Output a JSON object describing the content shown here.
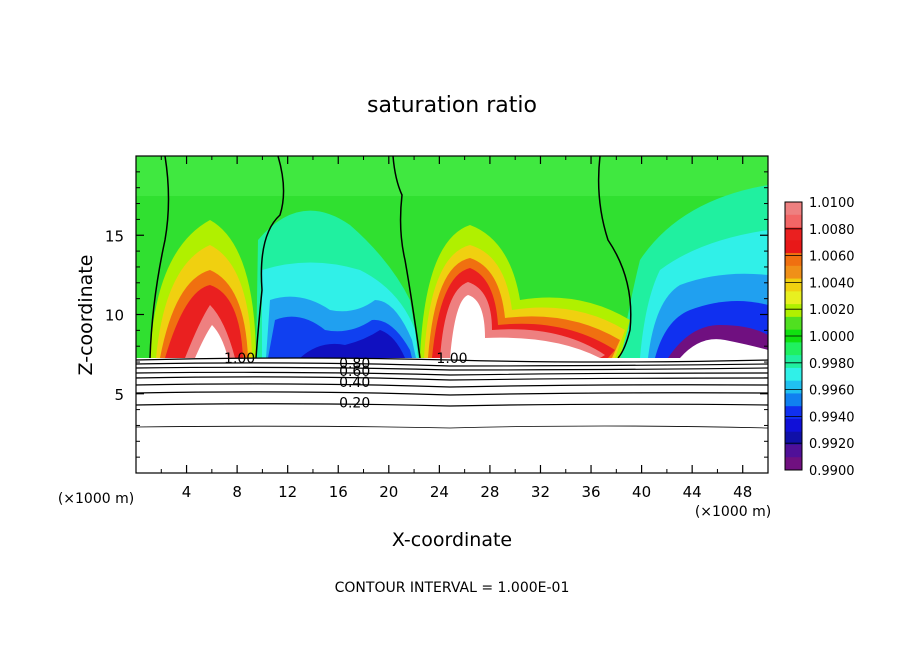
{
  "chart_data": {
    "type": "heatmap",
    "title": "saturation ratio",
    "xlabel": "X-coordinate",
    "ylabel": "Z-coordinate",
    "x_unit": "(×1000 m)",
    "x_unit_right": "(×1000 m)",
    "xlim": [
      0,
      50
    ],
    "ylim": [
      0,
      20
    ],
    "x_ticks": [
      4,
      8,
      12,
      16,
      20,
      24,
      28,
      32,
      36,
      40,
      44,
      48
    ],
    "y_ticks": [
      5,
      10,
      15
    ],
    "grid": false,
    "colorbar": {
      "ticks": [
        "1.0100",
        "1.0080",
        "1.0060",
        "1.0040",
        "1.0020",
        "1.0000",
        "0.9980",
        "0.9960",
        "0.9940",
        "0.9920",
        "0.9900"
      ],
      "colors": [
        "#ee8080",
        "#f26666",
        "#ea2020",
        "#e81818",
        "#f07010",
        "#f09018",
        "#f0d010",
        "#e8f020",
        "#b0f000",
        "#50e020",
        "#10e010",
        "#20f060",
        "#20f0a0",
        "#30f0e8",
        "#20c0f0",
        "#1080f0",
        "#1030f0",
        "#1010d8",
        "#1010a8",
        "#501098",
        "#701080"
      ],
      "min": 0.99,
      "max": 1.01
    },
    "contour_labels": [
      {
        "text": "1.00",
        "x": 8.2,
        "y": 7.25
      },
      {
        "text": "1.00",
        "x": 25.0,
        "y": 7.25
      },
      {
        "text": "0.80",
        "x": 17.3,
        "y": 6.95
      },
      {
        "text": "0.60",
        "x": 17.3,
        "y": 6.45
      },
      {
        "text": "0.40",
        "x": 17.3,
        "y": 5.75
      },
      {
        "text": "0.20",
        "x": 17.3,
        "y": 4.45
      }
    ],
    "contour_interval_text": "CONTOUR INTERVAL = 1.000E-01"
  }
}
